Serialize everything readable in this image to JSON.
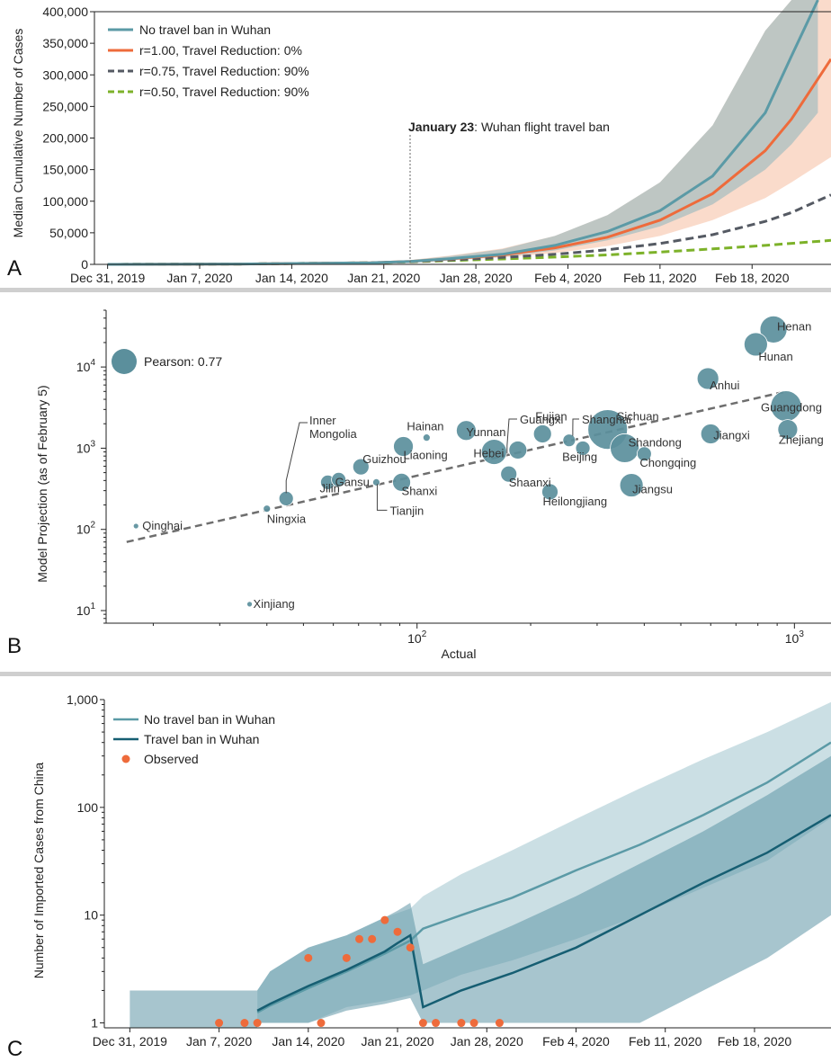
{
  "colors": {
    "teal": "#5b9aa6",
    "orange": "#ee6b3b",
    "gray_dash": "#555a63",
    "green_dash": "#7db22a",
    "dark_teal": "#165e72",
    "observed": "#ee6b3b",
    "divider": "#cfcfcf",
    "bubble": "#5b8f9c"
  },
  "chart_data": [
    {
      "panel": "A",
      "type": "line",
      "ylabel": "Median Cumulative Number of Cases",
      "ylim": [
        0,
        400000
      ],
      "yticks": [
        0,
        50000,
        100000,
        150000,
        200000,
        250000,
        300000,
        350000,
        400000
      ],
      "ytick_labels": [
        "0",
        "50,000",
        "100,000",
        "150,000",
        "200,000",
        "250,000",
        "300,000",
        "350,000",
        "400,000"
      ],
      "xtick_labels": [
        "Dec 31, 2019",
        "Jan 7, 2020",
        "Jan 14, 2020",
        "Jan 21, 2020",
        "Jan 28, 2020",
        "Feb 4, 2020",
        "Feb 11, 2020",
        "Feb 18, 2020"
      ],
      "xtick_days": [
        0,
        7,
        14,
        21,
        28,
        35,
        42,
        49
      ],
      "xlim_days": [
        -1,
        55
      ],
      "annotation": {
        "day": 23,
        "bold": "January 23",
        "text": ": Wuhan flight travel ban"
      },
      "legend_position": "top-left",
      "series": [
        {
          "name": "No travel ban in Wuhan",
          "style": "solid",
          "color_key": "teal",
          "x": [
            0,
            10,
            20,
            23,
            26,
            30,
            34,
            38,
            42,
            46,
            50,
            52,
            54
          ],
          "y": [
            0,
            500,
            2500,
            4500,
            9000,
            16000,
            30000,
            52000,
            85000,
            140000,
            240000,
            330000,
            440000
          ],
          "band_low": [
            0,
            400,
            2000,
            3500,
            7000,
            12000,
            22000,
            38000,
            60000,
            95000,
            150000,
            190000,
            240000
          ],
          "band_high": [
            0,
            700,
            3500,
            6500,
            13000,
            24000,
            45000,
            78000,
            130000,
            220000,
            370000,
            480000,
            600000
          ]
        },
        {
          "name": "r=1.00, Travel Reduction: 0%",
          "style": "solid",
          "color_key": "orange",
          "x": [
            0,
            10,
            20,
            23,
            26,
            30,
            34,
            38,
            42,
            46,
            50,
            52,
            55
          ],
          "y": [
            0,
            500,
            2500,
            4500,
            8500,
            15000,
            26000,
            43000,
            70000,
            112000,
            180000,
            230000,
            325000
          ],
          "band_low": [
            0,
            400,
            2000,
            3500,
            6500,
            11000,
            18000,
            29000,
            45000,
            70000,
            105000,
            130000,
            170000
          ],
          "band_high": [
            0,
            700,
            3500,
            7000,
            14000,
            25000,
            45000,
            78000,
            130000,
            220000,
            370000,
            480000,
            600000
          ]
        },
        {
          "name": "r=0.75, Travel Reduction: 90%",
          "style": "dashed",
          "color_key": "gray_dash",
          "x": [
            0,
            10,
            20,
            23,
            26,
            30,
            34,
            38,
            42,
            46,
            50,
            52,
            55
          ],
          "y": [
            0,
            500,
            2500,
            4200,
            7000,
            11000,
            16000,
            23000,
            33000,
            47000,
            68000,
            82000,
            110000
          ]
        },
        {
          "name": "r=0.50, Travel Reduction: 90%",
          "style": "dashed",
          "color_key": "green_dash",
          "x": [
            0,
            10,
            20,
            23,
            26,
            30,
            34,
            38,
            42,
            46,
            50,
            55
          ],
          "y": [
            0,
            500,
            2500,
            4000,
            6000,
            8500,
            11500,
            15000,
            19500,
            24500,
            30000,
            38000
          ]
        }
      ]
    },
    {
      "panel": "B",
      "type": "scatter",
      "xlabel": "Actual",
      "ylabel": "Model Projection (as of February 5)",
      "xscale": "log",
      "yscale": "log",
      "xlim": [
        15,
        1250
      ],
      "ylim": [
        7,
        50000
      ],
      "xtick_labels": [
        {
          "base": "10",
          "exp": "2"
        },
        {
          "base": "10",
          "exp": "3"
        }
      ],
      "ytick_labels": [
        {
          "base": "10",
          "exp": "1"
        },
        {
          "base": "10",
          "exp": "2"
        },
        {
          "base": "10",
          "exp": "3"
        },
        {
          "base": "10",
          "exp": "4"
        }
      ],
      "legend_label": "Pearson: 0.77",
      "trend_line": {
        "x": [
          17,
          950
        ],
        "y": [
          70,
          5000
        ]
      },
      "points": [
        {
          "name": "Qinghai",
          "x": 18,
          "y": 110,
          "size": 3
        },
        {
          "name": "Xinjiang",
          "x": 36,
          "y": 12,
          "size": 3
        },
        {
          "name": "Ningxia",
          "x": 40,
          "y": 180,
          "size": 4
        },
        {
          "name": "Inner Mongolia",
          "x": 45,
          "y": 240,
          "size": 8
        },
        {
          "name": "Jilin",
          "x": 58,
          "y": 380,
          "size": 8
        },
        {
          "name": "Gansu",
          "x": 62,
          "y": 410,
          "size": 8
        },
        {
          "name": "Guizhou",
          "x": 71,
          "y": 590,
          "size": 9
        },
        {
          "name": "Tianjin",
          "x": 78,
          "y": 380,
          "size": 4
        },
        {
          "name": "Shanxi",
          "x": 91,
          "y": 380,
          "size": 10
        },
        {
          "name": "Liaoning",
          "x": 92,
          "y": 1050,
          "size": 11
        },
        {
          "name": "Hainan",
          "x": 106,
          "y": 1350,
          "size": 4
        },
        {
          "name": "Yunnan",
          "x": 135,
          "y": 1650,
          "size": 11
        },
        {
          "name": "Hebei",
          "x": 160,
          "y": 900,
          "size": 14
        },
        {
          "name": "Shaanxi",
          "x": 175,
          "y": 480,
          "size": 9
        },
        {
          "name": "Guangxi",
          "x": 185,
          "y": 950,
          "size": 10
        },
        {
          "name": "Fujian",
          "x": 215,
          "y": 1500,
          "size": 10
        },
        {
          "name": "Heilongjiang",
          "x": 225,
          "y": 290,
          "size": 9
        },
        {
          "name": "Shanghai",
          "x": 253,
          "y": 1250,
          "size": 7
        },
        {
          "name": "Beijing",
          "x": 275,
          "y": 1000,
          "size": 8
        },
        {
          "name": "Sichuan",
          "x": 320,
          "y": 1700,
          "size": 22
        },
        {
          "name": "Shandong",
          "x": 355,
          "y": 1000,
          "size": 16
        },
        {
          "name": "Jiangsu",
          "x": 370,
          "y": 350,
          "size": 13
        },
        {
          "name": "Chongqing",
          "x": 400,
          "y": 850,
          "size": 8
        },
        {
          "name": "Anhui",
          "x": 590,
          "y": 7200,
          "size": 12
        },
        {
          "name": "Jiangxi",
          "x": 600,
          "y": 1500,
          "size": 11
        },
        {
          "name": "Hunan",
          "x": 790,
          "y": 19000,
          "size": 13
        },
        {
          "name": "Henan",
          "x": 880,
          "y": 29000,
          "size": 15
        },
        {
          "name": "Guangdong",
          "x": 950,
          "y": 3300,
          "size": 17
        },
        {
          "name": "Zhejiang",
          "x": 960,
          "y": 1700,
          "size": 11
        }
      ]
    },
    {
      "panel": "C",
      "type": "line",
      "ylabel": "Number of Imported Cases from China",
      "yscale": "log",
      "ylim": [
        0.9,
        1000
      ],
      "ytick_labels": [
        "1",
        "10",
        "100",
        "1,000"
      ],
      "yticks": [
        1,
        10,
        100,
        1000
      ],
      "xtick_labels": [
        "Dec 31, 2019",
        "Jan 7, 2020",
        "Jan 14, 2020",
        "Jan 21, 2020",
        "Jan 28, 2020",
        "Feb 4, 2020",
        "Feb 11, 2020",
        "Feb 18, 2020"
      ],
      "xtick_days": [
        0,
        7,
        14,
        21,
        28,
        35,
        42,
        49
      ],
      "xlim_days": [
        -2,
        55
      ],
      "legend_position": "top-left",
      "series": [
        {
          "name": "No travel ban in Wuhan",
          "style": "solid",
          "color_key": "teal",
          "x": [
            10,
            11,
            14,
            17,
            20,
            22,
            23,
            26,
            30,
            35,
            40,
            45,
            50,
            55
          ],
          "y": [
            1.25,
            1.45,
            2.1,
            3.0,
            4.4,
            5.8,
            7.5,
            10,
            14.5,
            26,
            45,
            85,
            170,
            400
          ],
          "band_low": [
            1.0,
            1.0,
            1.0,
            1.4,
            1.6,
            1.8,
            2.0,
            2.8,
            3.8,
            6.0,
            10,
            18,
            32,
            80
          ],
          "band_high": [
            2.0,
            3.0,
            5.0,
            6.5,
            9.5,
            11.5,
            15,
            24,
            40,
            78,
            150,
            280,
            500,
            950
          ]
        },
        {
          "name": "Travel ban in Wuhan",
          "style": "solid",
          "color_key": "dark_teal",
          "x": [
            10,
            11,
            14,
            17,
            20,
            21,
            22,
            23,
            26,
            30,
            35,
            40,
            45,
            50,
            55
          ],
          "y": [
            1.3,
            1.5,
            2.2,
            3.1,
            4.6,
            5.5,
            6.5,
            1.4,
            2.0,
            2.9,
            5.0,
            10,
            20,
            38,
            85
          ],
          "band_low": [
            1.0,
            1.0,
            1.0,
            1.3,
            1.5,
            1.6,
            1.7,
            1.0,
            1.0,
            1.0,
            1.0,
            1.0,
            2.0,
            4.0,
            10
          ],
          "band_high": [
            2.0,
            3.0,
            5.0,
            6.5,
            9.5,
            11,
            13,
            3.5,
            5.0,
            8.0,
            15,
            30,
            60,
            130,
            300
          ]
        }
      ],
      "observed": {
        "name": "Observed",
        "x": [
          7,
          9,
          10,
          14,
          15,
          17,
          18,
          19,
          20,
          21,
          22,
          23,
          24,
          26,
          27,
          29
        ],
        "y": [
          1,
          1,
          1,
          4,
          1,
          4,
          6,
          6,
          9,
          7,
          5,
          1,
          1,
          1,
          1,
          1
        ]
      }
    }
  ]
}
